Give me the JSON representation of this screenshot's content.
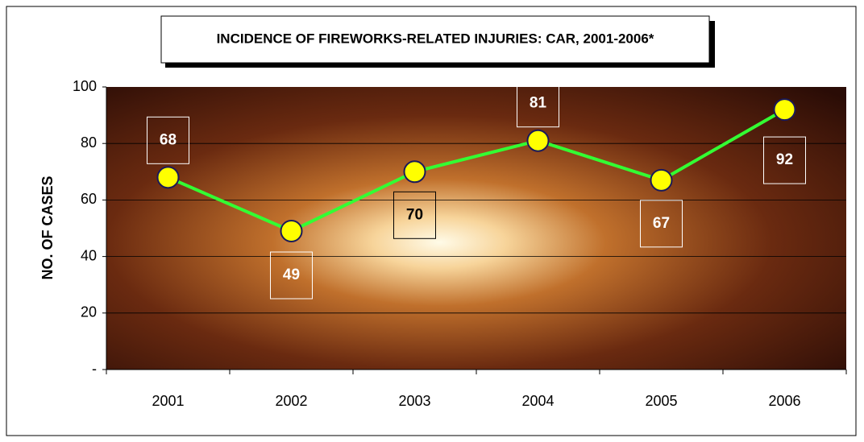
{
  "chart_data": {
    "type": "line",
    "title": "INCIDENCE OF FIREWORKS-RELATED INJURIES:  CAR, 2001-2006*",
    "y_label": "NO. OF CASES",
    "categories": [
      "2001",
      "2002",
      "2003",
      "2004",
      "2005",
      "2006"
    ],
    "values": [
      68,
      49,
      70,
      81,
      67,
      92
    ],
    "color": "#33ff33",
    "marker_color": "#ffff00",
    "ylim": [
      0,
      100
    ],
    "yticks": [
      {
        "value": 0,
        "label": "-"
      },
      20,
      40,
      60,
      80,
      100
    ],
    "grid": true
  }
}
